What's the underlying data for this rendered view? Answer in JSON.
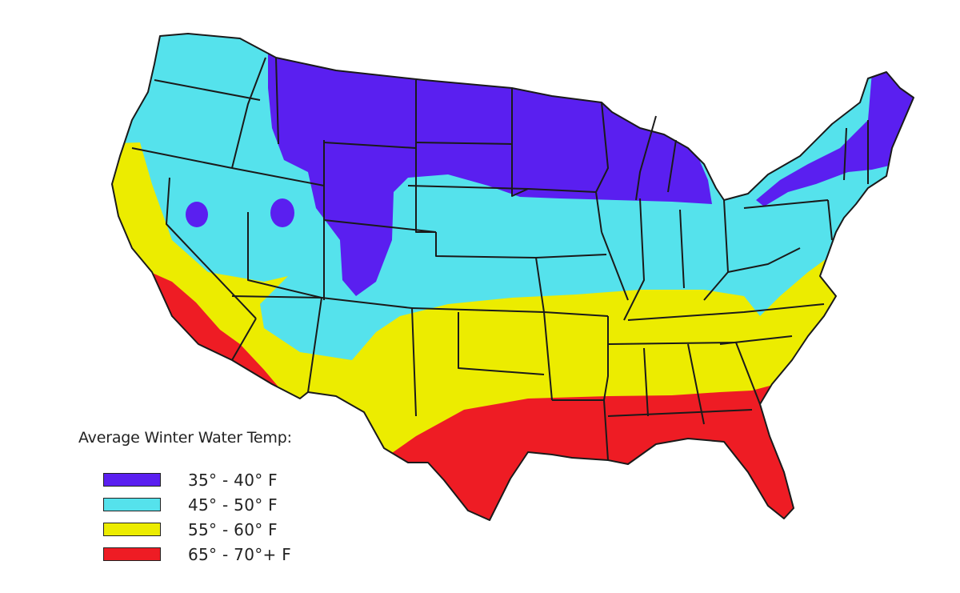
{
  "legend": {
    "title": "Average Winter Water Temp:",
    "items": [
      {
        "label": "35° - 40° F",
        "color": "#5a1ff0"
      },
      {
        "label": "45° - 50° F",
        "color": "#55e2ec"
      },
      {
        "label": "55° - 60° F",
        "color": "#ecec00"
      },
      {
        "label": "65° - 70°+ F",
        "color": "#ee1c24"
      }
    ]
  },
  "map": {
    "region": "Contiguous United States",
    "border_color": "#1a1a1a"
  }
}
